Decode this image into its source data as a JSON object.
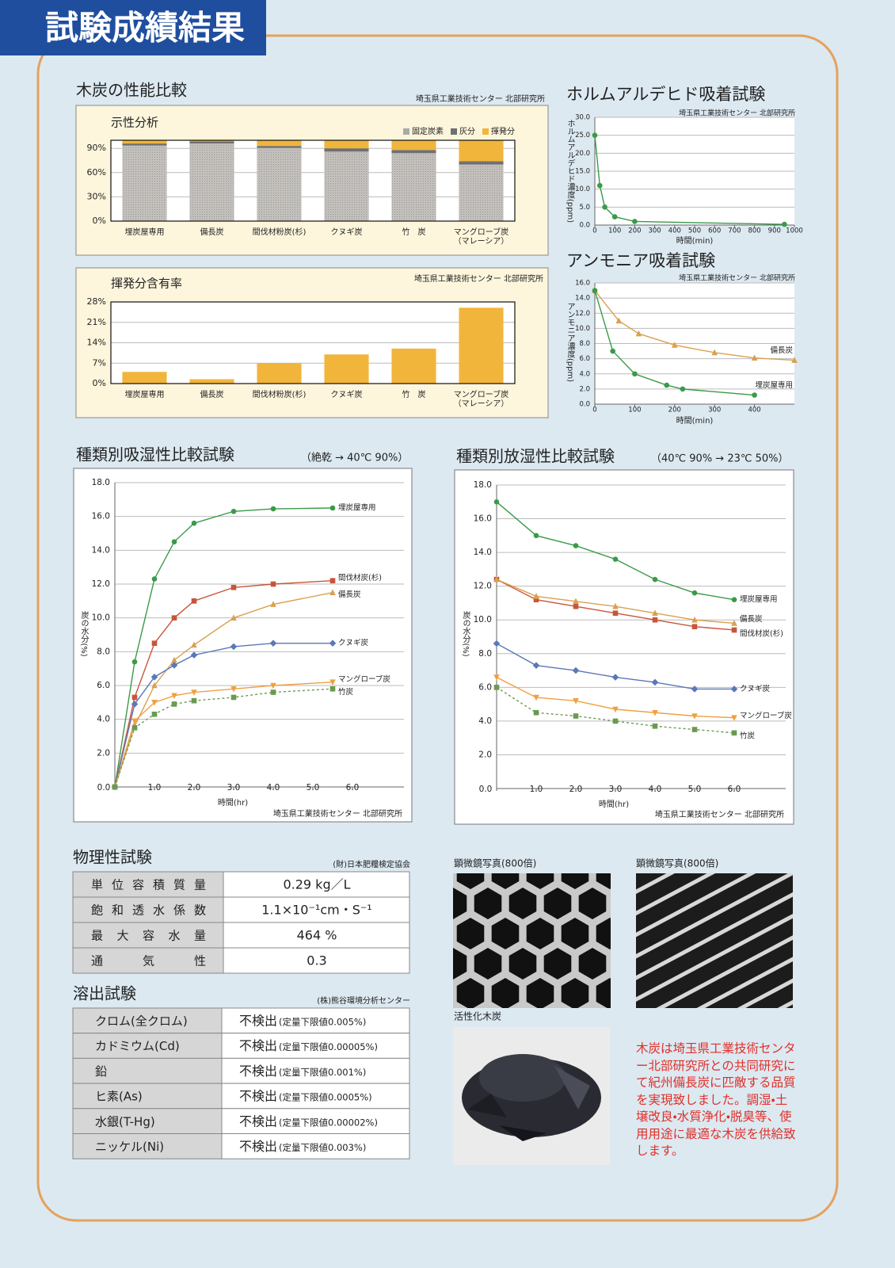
{
  "header": {
    "title": "試験成績結果"
  },
  "performance_section": {
    "title": "木炭の性能比較",
    "source": "埼玉県工業技術センター 北部研究所"
  },
  "chart_data": [
    {
      "type": "stacked-bar",
      "title": "示性分析",
      "categories": [
        "埋炭屋専用",
        "備長炭",
        "間伐材粉炭(杉)",
        "クヌギ炭",
        "竹　炭",
        "マングローブ炭\n（マレーシア）"
      ],
      "series": [
        {
          "name": "固定炭素",
          "color": "#bdbab6",
          "values": [
            93.5,
            96,
            90.5,
            86,
            84,
            70
          ]
        },
        {
          "name": "灰分",
          "color": "#707070",
          "values": [
            2.5,
            2.5,
            2.5,
            4,
            4,
            4
          ]
        },
        {
          "name": "揮発分",
          "color": "#f1b53c",
          "values": [
            4,
            1.5,
            7,
            10,
            12,
            26
          ]
        }
      ],
      "ylim": [
        0,
        100
      ],
      "yticks": [
        {
          "value": 0,
          "label": "0%"
        },
        {
          "value": 30,
          "label": "30%"
        },
        {
          "value": 60,
          "label": "60%"
        },
        {
          "value": 90,
          "label": "90%"
        }
      ],
      "grid": true
    },
    {
      "type": "bar",
      "title": "揮発分含有率",
      "source": "埼玉県工業技術センター 北部研究所",
      "categories": [
        "埋炭屋専用",
        "備長炭",
        "間伐材粉炭(杉)",
        "クヌギ炭",
        "竹　炭",
        "マングローブ炭\n（マレーシア）"
      ],
      "values": [
        4,
        1.5,
        7,
        10,
        12,
        26
      ],
      "color": "#f1b53c",
      "ylim": [
        0,
        28
      ],
      "yticks": [
        {
          "value": 0,
          "label": "0%"
        },
        {
          "value": 7,
          "label": "7%"
        },
        {
          "value": 14,
          "label": "14%"
        },
        {
          "value": 21,
          "label": "21%"
        },
        {
          "value": 28,
          "label": "28%"
        }
      ],
      "grid": true
    },
    {
      "type": "line",
      "title": "ホルムアルデヒド吸着試験",
      "source": "埼玉県工業技術センター 北部研究所",
      "x_label": "時間(min)",
      "y_label": "ホルムアルデヒド濃度(ppm)",
      "x": [
        0,
        25,
        50,
        100,
        200,
        950
      ],
      "values": [
        25,
        11,
        5,
        2.3,
        1,
        0.2
      ],
      "color": "#3a9a48",
      "marker": "circle",
      "xlim": [
        0,
        1000
      ],
      "xticks": [
        0,
        100,
        200,
        300,
        400,
        500,
        600,
        700,
        800,
        900,
        1000
      ],
      "ylim": [
        0,
        30
      ],
      "yticks": [
        {
          "value": 0,
          "label": "0.0"
        },
        {
          "value": 5,
          "label": "5.0"
        },
        {
          "value": 10,
          "label": "10.0"
        },
        {
          "value": 15,
          "label": "15.0"
        },
        {
          "value": 20,
          "label": "20.0"
        },
        {
          "value": 25,
          "label": "25.0"
        },
        {
          "value": 30,
          "label": "30.0"
        }
      ],
      "grid": true
    },
    {
      "type": "line",
      "title": "アンモニア吸着試験",
      "source": "埼玉県工業技術センター 北部研究所",
      "x_label": "時間(min)",
      "y_label": "アンモニア濃度(ppm)",
      "series": [
        {
          "name": "備長炭",
          "color": "#d9a050",
          "marker": "triangle",
          "x": [
            0,
            60,
            110,
            200,
            300,
            400,
            500
          ],
          "values": [
            15,
            11,
            9.3,
            7.8,
            6.8,
            6.1,
            5.8
          ]
        },
        {
          "name": "埋炭屋専用",
          "color": "#3a9a48",
          "marker": "circle",
          "x": [
            0,
            45,
            100,
            180,
            220,
            400
          ],
          "values": [
            15,
            7,
            4,
            2.5,
            2,
            1.2
          ]
        }
      ],
      "xlim": [
        0,
        500
      ],
      "xticks": [
        0,
        100,
        200,
        300,
        400
      ],
      "ylim": [
        0,
        16
      ],
      "yticks": [
        {
          "value": 0,
          "label": "0.0"
        },
        {
          "value": 2,
          "label": "2.0"
        },
        {
          "value": 4,
          "label": "4.0"
        },
        {
          "value": 6,
          "label": "6.0"
        },
        {
          "value": 8,
          "label": "8.0"
        },
        {
          "value": 10,
          "label": "10.0"
        },
        {
          "value": 12,
          "label": "12.0"
        },
        {
          "value": 14,
          "label": "14.0"
        },
        {
          "value": 16,
          "label": "16.0"
        }
      ],
      "grid": true
    },
    {
      "type": "line",
      "title": "種類別吸湿性比較試験",
      "subtitle": "（絶乾 → 40℃ 90%）",
      "source": "埼玉県工業技術センター 北部研究所",
      "x_label": "時間(hr)",
      "y_label": "炭の水分(%)",
      "x": [
        0,
        0.5,
        1,
        1.5,
        2,
        3,
        4,
        5.5
      ],
      "series": [
        {
          "name": "埋炭屋専用",
          "color": "#3a9a48",
          "marker": "circle",
          "values": [
            0,
            7.4,
            12.3,
            14.5,
            15.6,
            16.3,
            16.45,
            16.5
          ]
        },
        {
          "name": "間伐材炭(杉)",
          "color": "#c8553a",
          "marker": "square",
          "values": [
            0,
            5.3,
            8.5,
            10,
            11,
            11.8,
            12,
            12.2
          ]
        },
        {
          "name": "備長炭",
          "color": "#d9a050",
          "marker": "triangle",
          "values": [
            0,
            3.6,
            6,
            7.5,
            8.4,
            10,
            10.8,
            11.5
          ]
        },
        {
          "name": "クヌギ炭",
          "color": "#5a78b8",
          "marker": "diamond",
          "values": [
            0,
            4.9,
            6.5,
            7.2,
            7.8,
            8.3,
            8.5,
            8.5
          ]
        },
        {
          "name": "マングローブ炭",
          "color": "#f0a040",
          "marker": "triangle-down",
          "values": [
            0,
            3.9,
            5,
            5.4,
            5.6,
            5.8,
            6,
            6.2
          ]
        },
        {
          "name": "竹炭",
          "color": "#6a9a50",
          "marker": "square",
          "dash": true,
          "values": [
            0,
            3.5,
            4.3,
            4.9,
            5.1,
            5.3,
            5.6,
            5.8
          ]
        }
      ],
      "xlim": [
        0,
        7.3
      ],
      "xticks": [
        {
          "value": 0,
          "label": "0.0"
        },
        {
          "value": 1,
          "label": "1.0"
        },
        {
          "value": 2,
          "label": "2.0"
        },
        {
          "value": 3,
          "label": "3.0"
        },
        {
          "value": 4,
          "label": "4.0"
        },
        {
          "value": 5,
          "label": "5.0"
        },
        {
          "value": 6,
          "label": "6.0"
        }
      ],
      "ylim": [
        0,
        18
      ],
      "yticks": [
        {
          "value": 2,
          "label": "2.0"
        },
        {
          "value": 4,
          "label": "4.0"
        },
        {
          "value": 6,
          "label": "6.0"
        },
        {
          "value": 8,
          "label": "8.0"
        },
        {
          "value": 10,
          "label": "10.0"
        },
        {
          "value": 12,
          "label": "12.0"
        },
        {
          "value": 14,
          "label": "14.0"
        },
        {
          "value": 16,
          "label": "16.0"
        },
        {
          "value": 18,
          "label": "18.0"
        }
      ],
      "grid": true
    },
    {
      "type": "line",
      "title": "種類別放湿性比較試験",
      "subtitle": "（40℃ 90% → 23℃ 50%）",
      "source": "埼玉県工業技術センター 北部研究所",
      "x_label": "時間(hr)",
      "y_label": "炭の水分(%)",
      "x": [
        0,
        1,
        2,
        3,
        4,
        5,
        6
      ],
      "series": [
        {
          "name": "埋炭屋専用",
          "color": "#3a9a48",
          "marker": "circle",
          "values": [
            17,
            15,
            14.4,
            13.6,
            12.4,
            11.6,
            11.2
          ]
        },
        {
          "name": "間伐材炭(杉)",
          "color": "#c8553a",
          "marker": "square",
          "values": [
            12.4,
            11.2,
            10.8,
            10.4,
            10,
            9.6,
            9.4
          ]
        },
        {
          "name": "備長炭",
          "color": "#d9a050",
          "marker": "triangle",
          "values": [
            12.4,
            11.4,
            11.1,
            10.8,
            10.4,
            10,
            9.8
          ]
        },
        {
          "name": "クヌギ炭",
          "color": "#5a78b8",
          "marker": "diamond",
          "values": [
            8.6,
            7.3,
            7,
            6.6,
            6.3,
            5.9,
            5.9
          ]
        },
        {
          "name": "マングローブ炭",
          "color": "#f0a040",
          "marker": "triangle-down",
          "values": [
            6.6,
            5.4,
            5.2,
            4.7,
            4.5,
            4.3,
            4.2
          ]
        },
        {
          "name": "竹炭",
          "color": "#6a9a50",
          "marker": "square",
          "dash": true,
          "values": [
            6,
            4.5,
            4.3,
            4,
            3.7,
            3.5,
            3.3
          ]
        }
      ],
      "xlim": [
        0,
        7.3
      ],
      "xticks": [
        {
          "value": 0,
          "label": "0.0"
        },
        {
          "value": 1,
          "label": "1.0"
        },
        {
          "value": 2,
          "label": "2.0"
        },
        {
          "value": 3,
          "label": "3.0"
        },
        {
          "value": 4,
          "label": "4.0"
        },
        {
          "value": 5,
          "label": "5.0"
        },
        {
          "value": 6,
          "label": "6.0"
        }
      ],
      "ylim": [
        0,
        18
      ],
      "yticks": [
        {
          "value": 2,
          "label": "2.0"
        },
        {
          "value": 4,
          "label": "4.0"
        },
        {
          "value": 6,
          "label": "6.0"
        },
        {
          "value": 8,
          "label": "8.0"
        },
        {
          "value": 10,
          "label": "10.0"
        },
        {
          "value": 12,
          "label": "12.0"
        },
        {
          "value": 14,
          "label": "14.0"
        },
        {
          "value": 16,
          "label": "16.0"
        },
        {
          "value": 18,
          "label": "18.0"
        }
      ],
      "grid": true
    }
  ],
  "physical_test": {
    "title": "物理性試験",
    "source": "(財)日本肥糧検定協会",
    "rows": [
      [
        "単位容積質量",
        "0.29 kg／L"
      ],
      [
        "飽和透水係数",
        "1.1×10⁻¹cm・S⁻¹"
      ],
      [
        "最大容水量",
        "464 %"
      ],
      [
        "通気性",
        "0.3"
      ]
    ]
  },
  "elution_test": {
    "title": "溶出試験",
    "source": "(株)熊谷環境分析センター",
    "rows": [
      [
        "クロム(全クロム)",
        "不検出",
        "(定量下限値0.005%)"
      ],
      [
        "カドミウム(Cd)",
        "不検出",
        "(定量下限値0.00005%)"
      ],
      [
        "鉛",
        "不検出",
        "(定量下限値0.001%)"
      ],
      [
        "ヒ素(As)",
        "不検出",
        "(定量下限値0.0005%)"
      ],
      [
        "水銀(T-Hg)",
        "不検出",
        "(定量下限値0.00002%)"
      ],
      [
        "ニッケル(Ni)",
        "不検出",
        "(定量下限値0.003%)"
      ]
    ]
  },
  "photo_captions": [
    "顕微鏡写真(800倍)",
    "顕微鏡写真(800倍)",
    "活性化木炭"
  ],
  "note": "木炭は埼玉県工業技術センター北部研究所との共同研究にて紀州備長炭に匹敵する品質を実現致しました。調湿・土壌改良・水質浄化・脱臭等、使用用途に最適な木炭を供給致します。"
}
